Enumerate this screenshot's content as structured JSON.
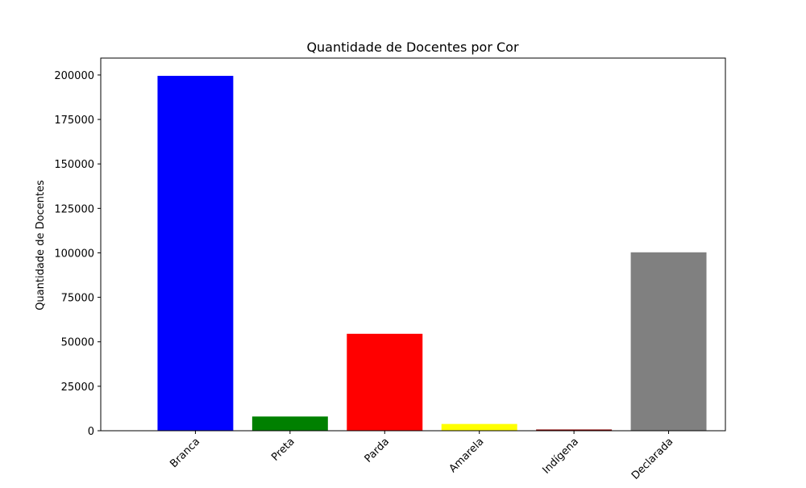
{
  "chart_data": {
    "type": "bar",
    "title": "Quantidade de Docentes por Cor",
    "xlabel": "",
    "ylabel": "Quantidade de Docentes",
    "categories": [
      "Branca",
      "Preta",
      "Parda",
      "Amarela",
      "Indígena",
      "Declarada"
    ],
    "values": [
      199500,
      8000,
      54500,
      3800,
      700,
      100300
    ],
    "colors": [
      "#0000ff",
      "#008000",
      "#ff0000",
      "#ffff00",
      "#8b0000",
      "#808080"
    ],
    "ylim": [
      0,
      209500
    ],
    "yticks": [
      0,
      25000,
      50000,
      75000,
      100000,
      125000,
      150000,
      175000,
      200000
    ],
    "grid": false,
    "legend": "none"
  }
}
